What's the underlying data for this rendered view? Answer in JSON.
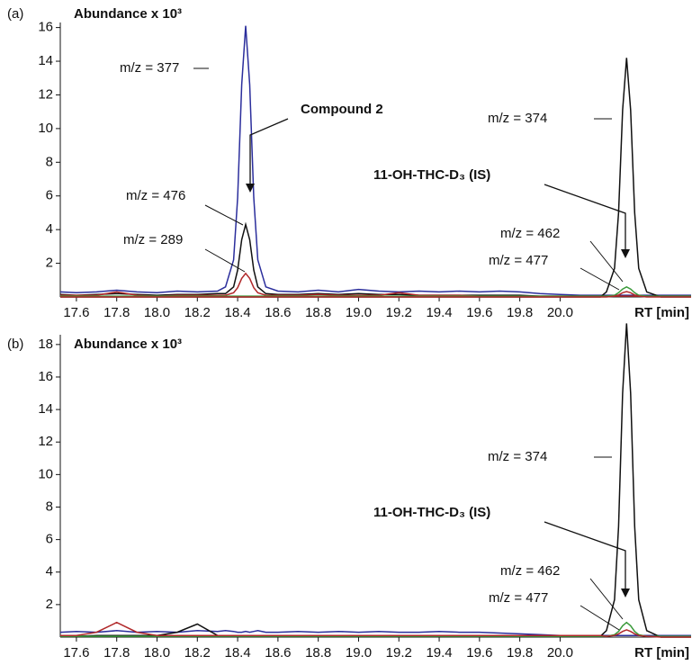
{
  "chart_data": [
    {
      "type": "line",
      "panel_label": "(a)",
      "y_label": "Abundance x 10³",
      "x_label": "RT [min]",
      "xlim": [
        17.52,
        20.65
      ],
      "ylim": [
        0,
        16.3
      ],
      "xticks": [
        17.6,
        17.8,
        {
          "value": 18,
          "label": "18.0"
        },
        18.2,
        18.4,
        18.6,
        18.8,
        {
          "value": 19,
          "label": "19.0"
        },
        19.2,
        19.4,
        19.6,
        19.8,
        {
          "value": 20,
          "label": "20.0"
        }
      ],
      "yticks": [
        2,
        4,
        6,
        8,
        10,
        12,
        14,
        16
      ],
      "annotations": [
        "Compound 2",
        "11-OH-THC-D₃ (IS)"
      ],
      "x": [
        17.52,
        17.6,
        17.7,
        17.8,
        17.9,
        18.0,
        18.1,
        18.2,
        18.3,
        18.34,
        18.38,
        18.4,
        18.42,
        18.44,
        18.46,
        18.48,
        18.5,
        18.54,
        18.6,
        18.7,
        18.8,
        18.9,
        19.0,
        19.1,
        19.2,
        19.3,
        19.4,
        19.5,
        19.6,
        19.7,
        19.8,
        19.9,
        20.0,
        20.1,
        20.2,
        20.23,
        20.27,
        20.29,
        20.31,
        20.33,
        20.35,
        20.37,
        20.39,
        20.43,
        20.5,
        20.6,
        20.65
      ],
      "series": [
        {
          "name": "m/z = 377",
          "color": "#2b2e9c",
          "values": [
            0.3,
            0.25,
            0.3,
            0.4,
            0.3,
            0.25,
            0.35,
            0.3,
            0.35,
            0.6,
            2.2,
            5.9,
            12.6,
            16.1,
            12.6,
            5.9,
            2.2,
            0.6,
            0.35,
            0.3,
            0.4,
            0.3,
            0.45,
            0.35,
            0.3,
            0.35,
            0.3,
            0.35,
            0.3,
            0.35,
            0.3,
            0.2,
            0.15,
            0.1,
            0.1,
            0.1,
            0.1,
            0.1,
            0.1,
            0.1,
            0.1,
            0.1,
            0.1,
            0.1,
            0.1,
            0.1,
            0.1
          ]
        },
        {
          "name": "m/z = 476",
          "color": "#111111",
          "values": [
            0.15,
            0.1,
            0.15,
            0.2,
            0.15,
            0.1,
            0.15,
            0.15,
            0.2,
            0.2,
            0.6,
            1.6,
            3.4,
            4.3,
            3.4,
            1.6,
            0.6,
            0.2,
            0.15,
            0.15,
            0.2,
            0.15,
            0.2,
            0.15,
            0.15,
            0.1,
            0.1,
            0.1,
            0.1,
            0.1,
            0.1,
            0.05,
            0.05,
            0.05,
            0.05,
            0.05,
            0.05,
            0.05,
            0.05,
            0.05,
            0.05,
            0.05,
            0.05,
            0.05,
            0.05,
            0.05,
            0.05
          ]
        },
        {
          "name": "m/z = 289",
          "color": "#b0282a",
          "values": [
            0.1,
            0.1,
            0.1,
            0.3,
            0.1,
            0.05,
            0.1,
            0.1,
            0.1,
            0.1,
            0.25,
            0.55,
            1.1,
            1.4,
            1.1,
            0.55,
            0.25,
            0.1,
            0.1,
            0.1,
            0.15,
            0.1,
            0.1,
            0.1,
            0.25,
            0.1,
            0.1,
            0.1,
            0.05,
            0.05,
            0.05,
            0.05,
            0.05,
            0.05,
            0.05,
            0.05,
            0.05,
            0.05,
            0.05,
            0.05,
            0.05,
            0.05,
            0.05,
            0.05,
            0.05,
            0.05,
            0.05
          ]
        },
        {
          "name": "m/z = 374",
          "color": "#111111",
          "values": [
            0,
            0,
            0,
            0,
            0,
            0,
            0,
            0,
            0,
            0,
            0,
            0,
            0,
            0,
            0,
            0,
            0,
            0,
            0,
            0,
            0,
            0,
            0,
            0,
            0,
            0,
            0,
            0,
            0,
            0,
            0,
            0,
            0,
            0,
            0,
            0.3,
            1.7,
            5,
            11.1,
            14.2,
            11.1,
            5,
            1.7,
            0.3,
            0,
            0,
            0
          ]
        },
        {
          "name": "m/z = 462",
          "color": "#3a9a3a",
          "values": [
            0.05,
            0.05,
            0.05,
            0.05,
            0.05,
            0.05,
            0.05,
            0.05,
            0.05,
            0.05,
            0.05,
            0.05,
            0.05,
            0.05,
            0.05,
            0.05,
            0.05,
            0.05,
            0.05,
            0.05,
            0.05,
            0.05,
            0.05,
            0.05,
            0.05,
            0.05,
            0.05,
            0.05,
            0.05,
            0.05,
            0.05,
            0.05,
            0.05,
            0.05,
            0.05,
            0.05,
            0.1,
            0.25,
            0.47,
            0.6,
            0.47,
            0.25,
            0.1,
            0.05,
            0.05,
            0.05,
            0.05
          ]
        },
        {
          "name": "m/z = 477",
          "color": "#b0282a",
          "values": [
            0,
            0,
            0,
            0,
            0,
            0,
            0,
            0,
            0,
            0,
            0,
            0,
            0,
            0,
            0,
            0,
            0,
            0,
            0,
            0,
            0,
            0,
            0,
            0,
            0,
            0,
            0,
            0,
            0,
            0,
            0,
            0,
            0,
            0,
            0,
            0,
            0.05,
            0.12,
            0.25,
            0.32,
            0.25,
            0.12,
            0.05,
            0,
            0,
            0,
            0
          ]
        }
      ]
    },
    {
      "type": "line",
      "panel_label": "(b)",
      "y_label": "Abundance x 10³",
      "x_label": "RT [min]",
      "xlim": [
        17.52,
        20.65
      ],
      "ylim": [
        0,
        18.6
      ],
      "xticks": [
        17.6,
        17.8,
        {
          "value": 18,
          "label": "18.0"
        },
        18.2,
        18.4,
        18.6,
        18.8,
        {
          "value": 19,
          "label": "19.0"
        },
        19.2,
        19.4,
        19.6,
        19.8,
        {
          "value": 20,
          "label": "20.0"
        }
      ],
      "yticks": [
        2,
        4,
        6,
        8,
        10,
        12,
        14,
        16,
        18
      ],
      "annotations": [
        "11-OH-THC-D₃ (IS)"
      ],
      "x": [
        17.52,
        17.6,
        17.7,
        17.8,
        17.9,
        18.0,
        18.1,
        18.2,
        18.3,
        18.34,
        18.38,
        18.4,
        18.42,
        18.44,
        18.46,
        18.48,
        18.5,
        18.54,
        18.6,
        18.7,
        18.8,
        18.9,
        19.0,
        19.1,
        19.2,
        19.3,
        19.4,
        19.5,
        19.6,
        19.7,
        19.8,
        19.9,
        20.0,
        20.1,
        20.2,
        20.23,
        20.27,
        20.29,
        20.31,
        20.33,
        20.35,
        20.37,
        20.39,
        20.43,
        20.5,
        20.6,
        20.65
      ],
      "series": [
        {
          "color": "#2b2e9c",
          "values": [
            0.3,
            0.35,
            0.3,
            0.4,
            0.3,
            0.35,
            0.3,
            0.4,
            0.35,
            0.4,
            0.35,
            0.3,
            0.3,
            0.35,
            0.3,
            0.35,
            0.4,
            0.3,
            0.3,
            0.35,
            0.3,
            0.35,
            0.3,
            0.35,
            0.3,
            0.3,
            0.35,
            0.3,
            0.3,
            0.25,
            0.2,
            0.15,
            0.1,
            0.1,
            0.1,
            0.1,
            0.1,
            0.1,
            0.1,
            0.1,
            0.1,
            0.1,
            0.1,
            0.1,
            0.1,
            0.1,
            0.1
          ]
        },
        {
          "name": "m/z = 374",
          "color": "#111111",
          "values": [
            0.1,
            0.05,
            0.1,
            0.1,
            0.1,
            0.1,
            0.3,
            0.8,
            0.1,
            0.05,
            0.05,
            0.05,
            0.05,
            0.05,
            0.05,
            0.05,
            0.05,
            0.05,
            0.05,
            0.05,
            0.05,
            0.05,
            0.05,
            0.05,
            0.05,
            0.05,
            0.05,
            0.05,
            0.05,
            0.05,
            0.05,
            0.05,
            0.05,
            0.05,
            0.05,
            0.4,
            2.3,
            6.8,
            15,
            19.3,
            15,
            6.8,
            2.3,
            0.4,
            0,
            0,
            0
          ]
        },
        {
          "name": "m/z = 462",
          "color": "#3a9a3a",
          "values": [
            0.05,
            0.05,
            0.05,
            0.05,
            0.05,
            0.05,
            0.05,
            0.05,
            0.05,
            0.05,
            0.05,
            0.05,
            0.05,
            0.05,
            0.05,
            0.05,
            0.05,
            0.05,
            0.05,
            0.05,
            0.05,
            0.05,
            0.05,
            0.05,
            0.05,
            0.05,
            0.05,
            0.05,
            0.05,
            0.05,
            0.05,
            0.05,
            0.05,
            0.05,
            0.05,
            0.05,
            0.15,
            0.35,
            0.7,
            0.9,
            0.7,
            0.35,
            0.15,
            0.05,
            0.05,
            0.05,
            0.05
          ]
        },
        {
          "name": "m/z = 477",
          "color": "#b0282a",
          "values": [
            0.1,
            0.1,
            0.3,
            0.9,
            0.3,
            0.1,
            0.1,
            0.1,
            0.1,
            0.1,
            0.1,
            0.1,
            0.1,
            0.1,
            0.1,
            0.1,
            0.1,
            0.1,
            0.1,
            0.1,
            0.1,
            0.1,
            0.1,
            0.1,
            0.1,
            0.1,
            0.1,
            0.1,
            0.1,
            0.1,
            0.1,
            0.1,
            0.1,
            0.1,
            0.1,
            0.05,
            0.1,
            0.2,
            0.35,
            0.45,
            0.35,
            0.2,
            0.1,
            0.05,
            0,
            0,
            0
          ]
        }
      ]
    }
  ]
}
